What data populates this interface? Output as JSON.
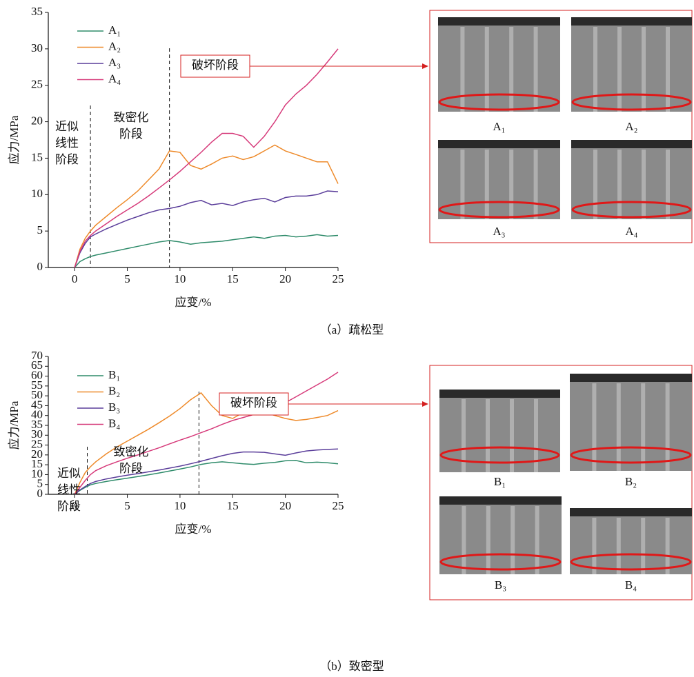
{
  "chart_data": [
    {
      "type": "line",
      "caption": "（a）疏松型",
      "xlabel": "应变/%",
      "ylabel": "应力/MPa",
      "xlim": [
        -2.5,
        25
      ],
      "xticks": [
        0,
        5,
        10,
        15,
        20,
        25
      ],
      "ylim": [
        0,
        35
      ],
      "yticks": [
        0,
        5,
        10,
        15,
        20,
        25,
        30,
        35
      ],
      "x": [
        0,
        0.5,
        1,
        1.5,
        2,
        3,
        4,
        5,
        6,
        7,
        8,
        9,
        10,
        11,
        12,
        13,
        14,
        15,
        16,
        17,
        18,
        19,
        20,
        21,
        22,
        23,
        24,
        25
      ],
      "series": [
        {
          "name": "A₁",
          "color": "#2e8b6a",
          "values": [
            0,
            0.8,
            1.2,
            1.5,
            1.7,
            2.0,
            2.3,
            2.6,
            2.9,
            3.2,
            3.5,
            3.7,
            3.5,
            3.2,
            3.4,
            3.5,
            3.6,
            3.8,
            4.0,
            4.2,
            4.0,
            4.3,
            4.4,
            4.2,
            4.3,
            4.5,
            4.3,
            4.4
          ]
        },
        {
          "name": "A₂",
          "color": "#ee8a2a",
          "values": [
            0,
            2.5,
            4.0,
            5.0,
            5.8,
            7.0,
            8.2,
            9.3,
            10.5,
            12.0,
            13.5,
            16.0,
            15.8,
            14.0,
            13.5,
            14.2,
            15.0,
            15.3,
            14.8,
            15.2,
            16.0,
            16.8,
            16.0,
            15.5,
            15.0,
            14.5,
            14.5,
            11.5
          ]
        },
        {
          "name": "A₃",
          "color": "#5a3d9a",
          "values": [
            0,
            2.0,
            3.3,
            4.2,
            4.6,
            5.3,
            5.9,
            6.5,
            7.0,
            7.5,
            7.9,
            8.1,
            8.4,
            8.9,
            9.2,
            8.6,
            8.8,
            8.5,
            9.0,
            9.3,
            9.5,
            9.0,
            9.6,
            9.8,
            9.8,
            10.0,
            10.5,
            10.4
          ]
        },
        {
          "name": "A₄",
          "color": "#d63a7a",
          "values": [
            0,
            2.2,
            3.6,
            4.4,
            5.0,
            6.0,
            7.0,
            7.9,
            8.8,
            9.8,
            10.9,
            12.0,
            13.2,
            14.5,
            15.8,
            17.2,
            18.4,
            18.4,
            18.0,
            16.5,
            18.0,
            20.0,
            22.3,
            23.8,
            25.0,
            26.5,
            28.2,
            30.0
          ]
        }
      ],
      "dividers": [
        1.5,
        9
      ],
      "annotations": [
        [
          "近似",
          "线性",
          "阶段"
        ],
        [
          "致密化",
          "阶段"
        ]
      ],
      "callout": "破坏阶段",
      "images": [
        "A₁",
        "A₂",
        "A₃",
        "A₄"
      ]
    },
    {
      "type": "line",
      "caption": "（b）致密型",
      "xlabel": "应变/%",
      "ylabel": "应力/MPa",
      "xlim": [
        -2.5,
        25
      ],
      "xticks": [
        0,
        5,
        10,
        15,
        20,
        25
      ],
      "ylim": [
        0,
        70
      ],
      "yticks": [
        0,
        5,
        10,
        15,
        20,
        25,
        30,
        35,
        40,
        45,
        50,
        55,
        60,
        65,
        70
      ],
      "x": [
        0,
        0.5,
        1,
        1.5,
        2,
        3,
        4,
        5,
        6,
        7,
        8,
        9,
        10,
        11,
        12,
        13,
        14,
        15,
        16,
        17,
        18,
        19,
        20,
        21,
        22,
        23,
        24,
        25
      ],
      "series": [
        {
          "name": "B₁",
          "color": "#2e8b6a",
          "values": [
            0,
            2,
            3.5,
            4.8,
            5.5,
            6.5,
            7.4,
            8.2,
            9.0,
            9.9,
            10.8,
            11.8,
            12.8,
            13.9,
            15.2,
            16.0,
            16.5,
            16.0,
            15.5,
            15.2,
            15.8,
            16.2,
            17.0,
            17.2,
            16.0,
            16.3,
            16.0,
            15.5
          ]
        },
        {
          "name": "B₂",
          "color": "#ee8a2a",
          "values": [
            0,
            6,
            11,
            14,
            16.5,
            20.5,
            24,
            27,
            30,
            33,
            36.3,
            39.7,
            43.5,
            48,
            51.5,
            45,
            40,
            38.5,
            41.5,
            41,
            41.5,
            40,
            38.5,
            37.5,
            38,
            39,
            40,
            42.5
          ]
        },
        {
          "name": "B₃",
          "color": "#5a3d9a",
          "values": [
            0,
            2.2,
            4,
            5.5,
            6.5,
            7.8,
            8.8,
            9.7,
            10.5,
            11.4,
            12.3,
            13.3,
            14.3,
            15.5,
            16.8,
            18.2,
            19.6,
            20.8,
            21.5,
            21.5,
            21.3,
            20.5,
            19.8,
            21.0,
            22.0,
            22.5,
            22.8,
            23.0
          ]
        },
        {
          "name": "B₄",
          "color": "#d63a7a",
          "values": [
            0,
            3.5,
            7,
            10,
            12,
            14.5,
            16.5,
            18.3,
            20,
            21.8,
            23.6,
            25.6,
            27.5,
            29.3,
            31.3,
            33.3,
            35.5,
            37.5,
            39,
            40.5,
            41,
            43.5,
            46.5,
            49.5,
            52.5,
            55.5,
            58.5,
            62
          ]
        }
      ],
      "dividers": [
        1.2,
        11.8
      ],
      "annotations": [
        [
          "近似",
          "线性",
          "阶段"
        ],
        [
          "致密化",
          "阶段"
        ]
      ],
      "callout": "破坏阶段",
      "images": [
        "B₁",
        "B₂",
        "B₃",
        "B₄"
      ]
    }
  ]
}
